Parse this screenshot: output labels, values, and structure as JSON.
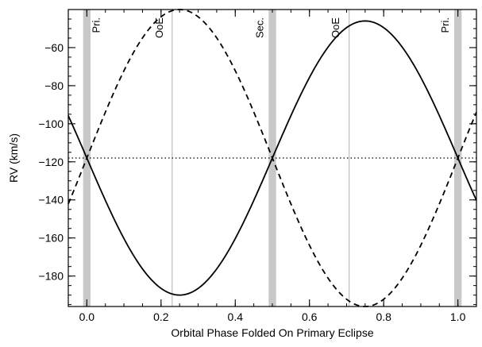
{
  "chart_data": {
    "type": "line",
    "title": "",
    "xlabel": "Orbital Phase Folded On Primary Eclipse",
    "ylabel": "RV (km/s)",
    "xlim": [
      -0.05,
      1.05
    ],
    "ylim": [
      -196,
      -40
    ],
    "xticks": [
      0.0,
      0.2,
      0.4,
      0.6,
      0.8,
      1.0
    ],
    "xtick_labels": [
      "0.0",
      "0.2",
      "0.4",
      "0.6",
      "0.8",
      "1.0"
    ],
    "yticks": [
      -60,
      -80,
      -100,
      -120,
      -140,
      -160,
      -180
    ],
    "ytick_labels": [
      "-60",
      "-80",
      "-100",
      "-120",
      "-140",
      "-160",
      "-180"
    ],
    "grid": false,
    "systemic_velocity": -118,
    "shaded_bands": [
      {
        "x": 0.0,
        "width": 0.02
      },
      {
        "x": 0.5,
        "width": 0.02
      },
      {
        "x": 1.0,
        "width": 0.02
      }
    ],
    "vertical_lines": [
      0.23,
      0.707
    ],
    "annotations": [
      {
        "text": "Pri.",
        "x": 0.035
      },
      {
        "text": "OoE",
        "x": 0.205
      },
      {
        "text": "Sec.",
        "x": 0.475
      },
      {
        "text": "OoE",
        "x": 0.68
      },
      {
        "text": "Pri.",
        "x": 0.975
      }
    ],
    "series": [
      {
        "style": "solid",
        "amplitude": 72,
        "offset": -118,
        "sign": 1,
        "x": [
          -0.05,
          0.0,
          0.1,
          0.2,
          0.25,
          0.3,
          0.4,
          0.5,
          0.6,
          0.7,
          0.75,
          0.8,
          0.9,
          1.0,
          1.05
        ],
        "y": [
          -95,
          -118,
          -160,
          -186,
          -190,
          -186,
          -160,
          -118,
          -76,
          -50,
          -46,
          -50,
          -76,
          -118,
          -141
        ]
      },
      {
        "style": "dashed",
        "amplitude": 78,
        "offset": -118,
        "sign": -1,
        "x": [
          -0.05,
          0.0,
          0.1,
          0.2,
          0.25,
          0.3,
          0.4,
          0.5,
          0.6,
          0.7,
          0.75,
          0.8,
          0.9,
          1.0,
          1.05
        ],
        "y": [
          -142,
          -118,
          -72,
          -44,
          -40,
          -44,
          -72,
          -118,
          -164,
          -192,
          -196,
          -192,
          -164,
          -118,
          -94
        ]
      }
    ]
  }
}
